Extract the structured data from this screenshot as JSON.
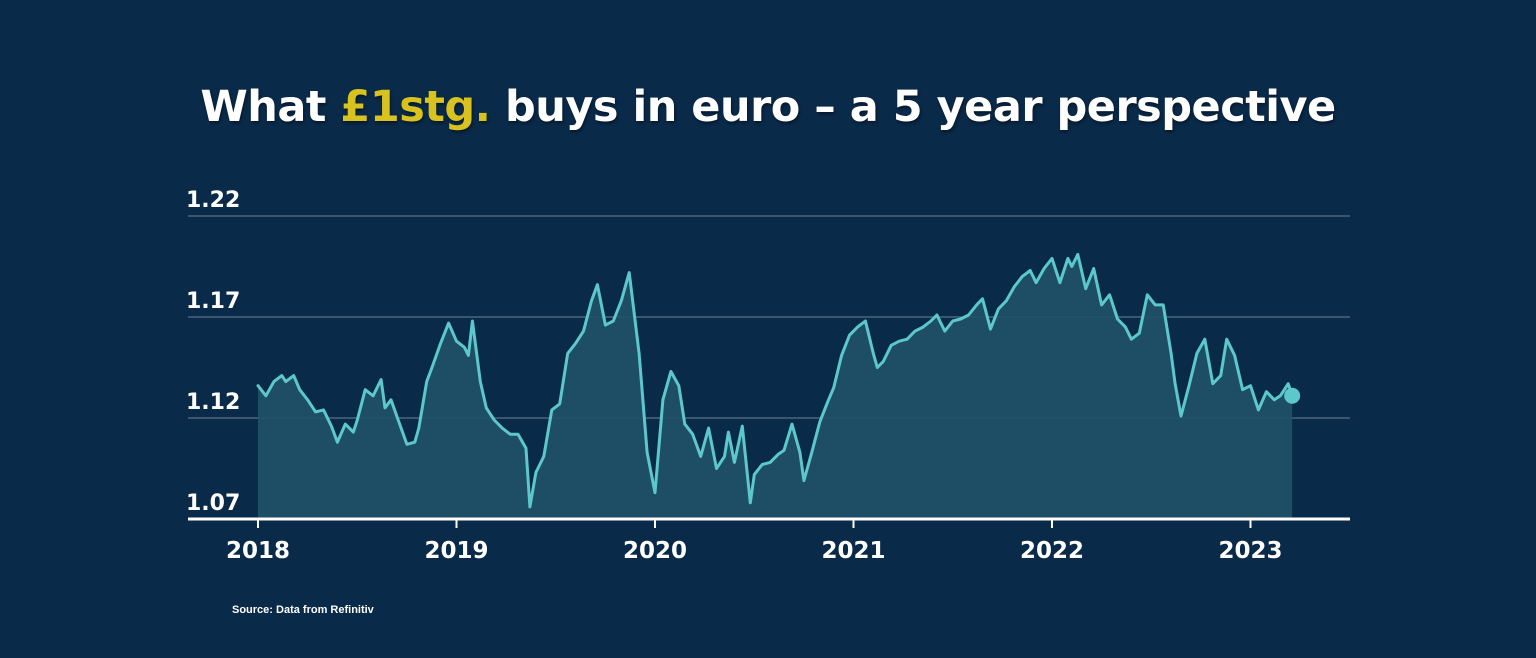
{
  "title": {
    "prefix": "What ",
    "highlight": "£1stg.",
    "suffix": " buys in euro – a 5 year perspective"
  },
  "source": "Source: Data from Refinitiv",
  "colors": {
    "background": "#0a2a4a",
    "highlight": "#d7c21f",
    "line": "#5cc8cc",
    "area": "#1f5268",
    "grid": "#6d8196",
    "axis": "#ffffff"
  },
  "chart_data": {
    "type": "area",
    "title": "What £1stg. buys in euro – a 5 year perspective",
    "xlabel": "",
    "ylabel": "",
    "ylim": [
      1.07,
      1.22
    ],
    "xlim": [
      2017.65,
      2023.55
    ],
    "yticks": [
      1.07,
      1.12,
      1.17,
      1.22
    ],
    "ytick_labels": [
      "1.07",
      "1.12",
      "1.17",
      "1.22"
    ],
    "xticks": [
      2018,
      2019,
      2020,
      2021,
      2022,
      2023
    ],
    "xtick_labels": [
      "2018",
      "2019",
      "2020",
      "2021",
      "2022",
      "2023"
    ],
    "grid": true,
    "legend": "none",
    "series": [
      {
        "x": [
          2018.0,
          2018.04,
          2018.08,
          2018.12,
          2018.14,
          2018.18,
          2018.21,
          2018.25,
          2018.29,
          2018.33,
          2018.37,
          2018.4,
          2018.44,
          2018.48,
          2018.5,
          2018.54,
          2018.58,
          2018.62,
          2018.64,
          2018.67,
          2018.71,
          2018.75,
          2018.79,
          2018.81,
          2018.85,
          2018.88,
          2018.92,
          2018.96,
          2019.0,
          2019.04,
          2019.06,
          2019.08,
          2019.12,
          2019.15,
          2019.19,
          2019.23,
          2019.27,
          2019.31,
          2019.35,
          2019.37,
          2019.4,
          2019.44,
          2019.48,
          2019.52,
          2019.56,
          2019.6,
          2019.64,
          2019.68,
          2019.71,
          2019.75,
          2019.79,
          2019.83,
          2019.87,
          2019.92,
          2019.96,
          2020.0,
          2020.04,
          2020.08,
          2020.12,
          2020.15,
          2020.19,
          2020.23,
          2020.27,
          2020.31,
          2020.35,
          2020.37,
          2020.4,
          2020.44,
          2020.48,
          2020.5,
          2020.54,
          2020.58,
          2020.62,
          2020.65,
          2020.69,
          2020.73,
          2020.75,
          2020.79,
          2020.83,
          2020.87,
          2020.9,
          2020.94,
          2020.98,
          2021.02,
          2021.06,
          2021.1,
          2021.12,
          2021.15,
          2021.19,
          2021.23,
          2021.27,
          2021.31,
          2021.35,
          2021.39,
          2021.42,
          2021.46,
          2021.5,
          2021.54,
          2021.58,
          2021.62,
          2021.65,
          2021.69,
          2021.73,
          2021.77,
          2021.81,
          2021.85,
          2021.89,
          2021.92,
          2021.96,
          2022.0,
          2022.04,
          2022.08,
          2022.1,
          2022.13,
          2022.17,
          2022.21,
          2022.25,
          2022.29,
          2022.33,
          2022.37,
          2022.4,
          2022.44,
          2022.48,
          2022.52,
          2022.56,
          2022.6,
          2022.62,
          2022.65,
          2022.69,
          2022.73,
          2022.77,
          2022.81,
          2022.85,
          2022.88,
          2022.92,
          2022.96,
          2023.0,
          2023.04,
          2023.08,
          2023.12,
          2023.15,
          2023.19,
          2023.21
        ],
        "values": [
          1.136,
          1.131,
          1.138,
          1.141,
          1.138,
          1.141,
          1.134,
          1.129,
          1.123,
          1.124,
          1.116,
          1.108,
          1.117,
          1.113,
          1.119,
          1.134,
          1.131,
          1.139,
          1.125,
          1.129,
          1.118,
          1.107,
          1.108,
          1.115,
          1.138,
          1.146,
          1.157,
          1.167,
          1.158,
          1.155,
          1.151,
          1.168,
          1.138,
          1.125,
          1.119,
          1.115,
          1.112,
          1.112,
          1.105,
          1.076,
          1.093,
          1.101,
          1.124,
          1.127,
          1.152,
          1.157,
          1.163,
          1.178,
          1.186,
          1.166,
          1.168,
          1.178,
          1.192,
          1.152,
          1.103,
          1.083,
          1.129,
          1.143,
          1.136,
          1.117,
          1.112,
          1.101,
          1.115,
          1.095,
          1.101,
          1.113,
          1.098,
          1.116,
          1.078,
          1.092,
          1.097,
          1.098,
          1.102,
          1.104,
          1.117,
          1.103,
          1.089,
          1.103,
          1.118,
          1.128,
          1.135,
          1.151,
          1.161,
          1.165,
          1.168,
          1.152,
          1.145,
          1.148,
          1.156,
          1.158,
          1.159,
          1.163,
          1.165,
          1.168,
          1.171,
          1.163,
          1.168,
          1.169,
          1.171,
          1.176,
          1.179,
          1.164,
          1.174,
          1.178,
          1.185,
          1.19,
          1.193,
          1.187,
          1.194,
          1.199,
          1.187,
          1.199,
          1.195,
          1.201,
          1.184,
          1.194,
          1.176,
          1.181,
          1.169,
          1.165,
          1.159,
          1.162,
          1.181,
          1.176,
          1.176,
          1.152,
          1.137,
          1.121,
          1.136,
          1.152,
          1.159,
          1.137,
          1.141,
          1.159,
          1.151,
          1.134,
          1.136,
          1.124,
          1.133,
          1.129,
          1.131,
          1.137,
          1.131
        ],
        "last_point_marker": true
      }
    ]
  }
}
